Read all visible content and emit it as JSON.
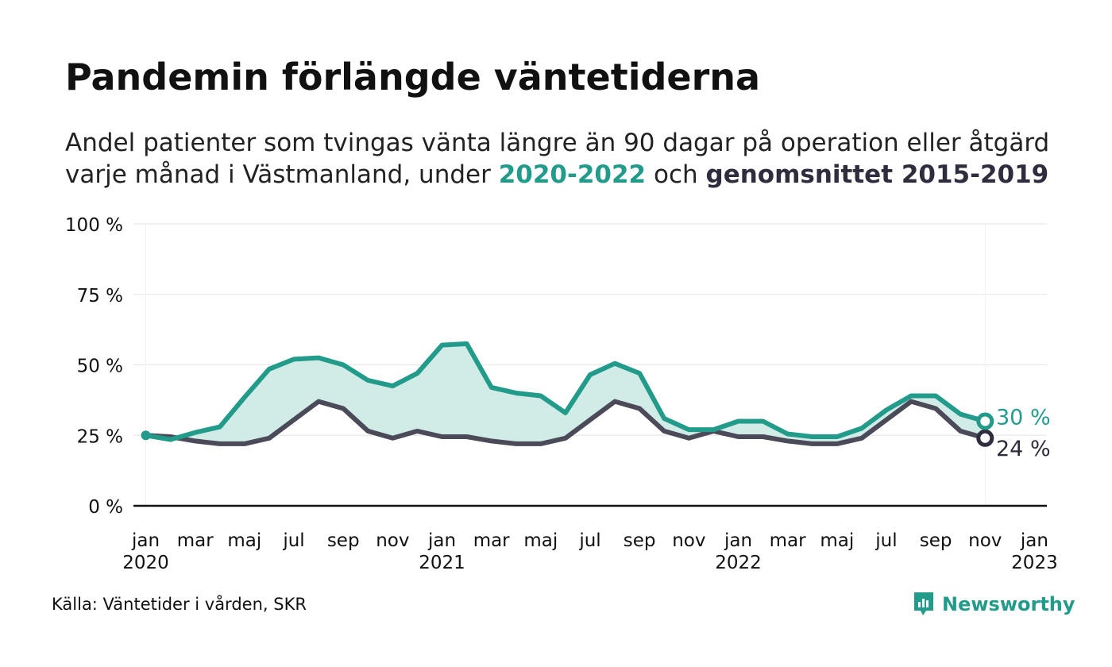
{
  "header": {
    "title": "Pandemin förlängde väntetiderna",
    "subtitle_line1": "Andel patienter som tvingas vänta längre än 90 dagar på operation eller åtgärd",
    "subtitle_line2_prefix": "varje månad i Västmanland, under ",
    "subtitle_highlight_current": "2020-2022",
    "subtitle_line2_mid": " och ",
    "subtitle_highlight_average": "genomsnittet 2015-2019"
  },
  "footer": {
    "source": "Källa: Väntetider i vården, SKR",
    "brand": "Newsworthy"
  },
  "colors": {
    "current": "#229b8b",
    "average": "#4a4a59",
    "average_end": "#2e2d3d",
    "fill": "#d1ebe7",
    "grid": "#e6e6e6",
    "axis": "#111111"
  },
  "chart_data": {
    "type": "line",
    "ylim": [
      0,
      100
    ],
    "y_ticks": [
      0,
      25,
      50,
      75,
      100
    ],
    "y_tick_labels": [
      "0 %",
      "25 %",
      "50 %",
      "75 %",
      "100 %"
    ],
    "x_tick_labels": [
      {
        "index": 0,
        "month": "jan",
        "year": "2020"
      },
      {
        "index": 2,
        "month": "mar",
        "year": ""
      },
      {
        "index": 4,
        "month": "maj",
        "year": ""
      },
      {
        "index": 6,
        "month": "jul",
        "year": ""
      },
      {
        "index": 8,
        "month": "sep",
        "year": ""
      },
      {
        "index": 10,
        "month": "nov",
        "year": ""
      },
      {
        "index": 12,
        "month": "jan",
        "year": "2021"
      },
      {
        "index": 14,
        "month": "mar",
        "year": ""
      },
      {
        "index": 16,
        "month": "maj",
        "year": ""
      },
      {
        "index": 18,
        "month": "jul",
        "year": ""
      },
      {
        "index": 20,
        "month": "sep",
        "year": ""
      },
      {
        "index": 22,
        "month": "nov",
        "year": ""
      },
      {
        "index": 24,
        "month": "jan",
        "year": "2022"
      },
      {
        "index": 26,
        "month": "mar",
        "year": ""
      },
      {
        "index": 28,
        "month": "maj",
        "year": ""
      },
      {
        "index": 30,
        "month": "jul",
        "year": ""
      },
      {
        "index": 32,
        "month": "sep",
        "year": ""
      },
      {
        "index": 34,
        "month": "nov",
        "year": ""
      },
      {
        "index": 36,
        "month": "jan",
        "year": "2023"
      }
    ],
    "x_range": [
      -0.5,
      36.5
    ],
    "series": [
      {
        "name": "2020-2022",
        "values": [
          25,
          23.5,
          26,
          28,
          38.5,
          48.5,
          52,
          52.5,
          50,
          44.5,
          42.5,
          47,
          57,
          57.5,
          42,
          40,
          39,
          33,
          46.5,
          50.5,
          47,
          31,
          27,
          27,
          30,
          30,
          25.5,
          24.5,
          24.5,
          27.5,
          34,
          39,
          39,
          32.5,
          30
        ],
        "end_label": "30 %"
      },
      {
        "name": "genomsnittet 2015-2019",
        "values": [
          25,
          24.5,
          23,
          22,
          22,
          24,
          30.5,
          37,
          34.5,
          26.5,
          24,
          26.5,
          24.5,
          24.5,
          23,
          22,
          22,
          24,
          30.5,
          37,
          34.5,
          26.5,
          24,
          26.5,
          24.5,
          24.5,
          23,
          22,
          22,
          24,
          30.5,
          37,
          34.5,
          26.5,
          24
        ],
        "end_label": "24 %"
      }
    ]
  }
}
